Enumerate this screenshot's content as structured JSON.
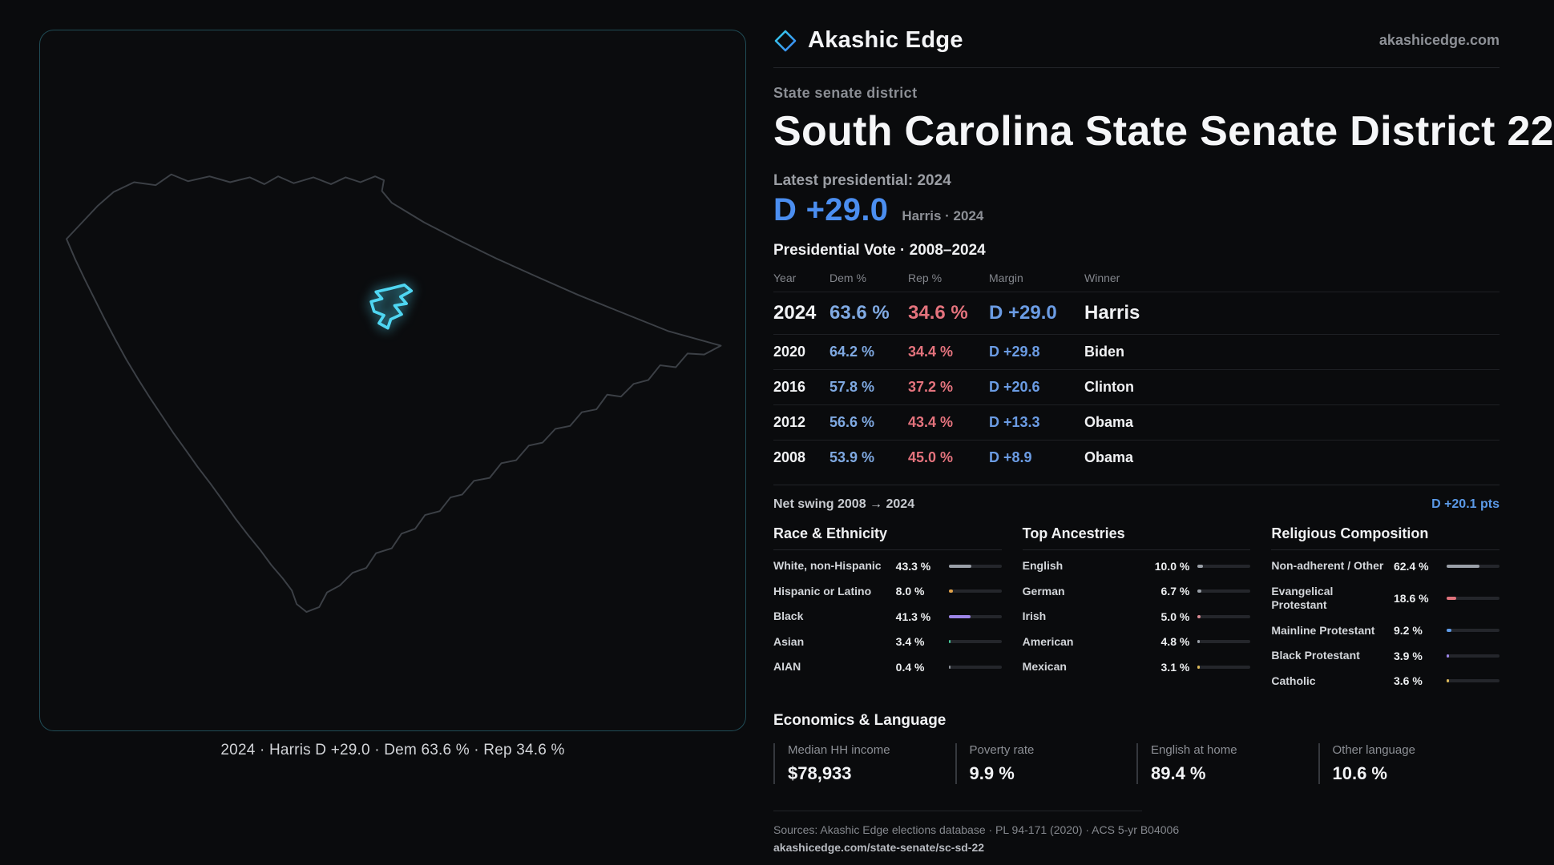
{
  "header": {
    "brand": "Akashic Edge",
    "domain": "akashicedge.com"
  },
  "district": {
    "kicker": "State senate district",
    "title": "South Carolina State Senate District 22",
    "latest_label": "Latest presidential: 2024",
    "margin_big": "D +29.0",
    "margin_context": "Harris · 2024"
  },
  "map": {
    "caption": "2024 · Harris D +29.0 · Dem 63.6 % · Rep 34.6 %"
  },
  "vote_table": {
    "title": "Presidential Vote · 2008–2024",
    "columns": [
      "Year",
      "Dem %",
      "Rep %",
      "Margin",
      "Winner"
    ],
    "rows": [
      {
        "year": "2024",
        "dem": "63.6 %",
        "rep": "34.6 %",
        "margin": "D +29.0",
        "winner": "Harris",
        "emphasis": true
      },
      {
        "year": "2020",
        "dem": "64.2 %",
        "rep": "34.4 %",
        "margin": "D +29.8",
        "winner": "Biden"
      },
      {
        "year": "2016",
        "dem": "57.8 %",
        "rep": "37.2 %",
        "margin": "D +20.6",
        "winner": "Clinton"
      },
      {
        "year": "2012",
        "dem": "56.6 %",
        "rep": "43.4 %",
        "margin": "D +13.3",
        "winner": "Obama"
      },
      {
        "year": "2008",
        "dem": "53.9 %",
        "rep": "45.0 %",
        "margin": "D +8.9",
        "winner": "Obama"
      }
    ],
    "net_swing_label": "Net swing 2008 → 2024",
    "net_swing_value": "D +20.1 pts"
  },
  "race": {
    "title": "Race & Ethnicity",
    "rows": [
      {
        "label": "White, non-Hispanic",
        "value": "43.3 %",
        "pct": 43.3,
        "color": "#9aa0a8"
      },
      {
        "label": "Hispanic or Latino",
        "value": "8.0 %",
        "pct": 8.0,
        "color": "#e0a24a"
      },
      {
        "label": "Black",
        "value": "41.3 %",
        "pct": 41.3,
        "color": "#9d85e8"
      },
      {
        "label": "Asian",
        "value": "3.4 %",
        "pct": 3.4,
        "color": "#46c99a"
      },
      {
        "label": "AIAN",
        "value": "0.4 %",
        "pct": 0.4,
        "color": "#8f949b"
      }
    ]
  },
  "ancestries": {
    "title": "Top Ancestries",
    "rows": [
      {
        "label": "English",
        "value": "10.0 %",
        "pct": 10.0,
        "color": "#9aa0a8"
      },
      {
        "label": "German",
        "value": "6.7 %",
        "pct": 6.7,
        "color": "#9aa0a8"
      },
      {
        "label": "Irish",
        "value": "5.0 %",
        "pct": 5.0,
        "color": "#d98a93"
      },
      {
        "label": "American",
        "value": "4.8 %",
        "pct": 4.8,
        "color": "#9aa0a8"
      },
      {
        "label": "Mexican",
        "value": "3.1 %",
        "pct": 3.1,
        "color": "#ddba5a"
      }
    ]
  },
  "religion": {
    "title": "Religious Composition",
    "rows": [
      {
        "label": "Non-adherent / Other",
        "value": "62.4 %",
        "pct": 62.4,
        "color": "#9aa0a8"
      },
      {
        "label": "Evangelical Protestant",
        "value": "18.6 %",
        "pct": 18.6,
        "color": "#e0737c"
      },
      {
        "label": "Mainline Protestant",
        "value": "9.2 %",
        "pct": 9.2,
        "color": "#5f9be8"
      },
      {
        "label": "Black Protestant",
        "value": "3.9 %",
        "pct": 3.9,
        "color": "#9d85e8"
      },
      {
        "label": "Catholic",
        "value": "3.6 %",
        "pct": 3.6,
        "color": "#ddba5a"
      }
    ]
  },
  "economics": {
    "title": "Economics & Language",
    "stats": [
      {
        "label": "Median HH income",
        "value": "$78,933"
      },
      {
        "label": "Poverty rate",
        "value": "9.9 %"
      },
      {
        "label": "English at home",
        "value": "89.4 %"
      },
      {
        "label": "Other language",
        "value": "10.6 %"
      }
    ]
  },
  "footer": {
    "sources": "Sources: Akashic Edge elections database · PL 94-171 (2020) · ACS 5-yr B04006",
    "permalink": "akashicedge.com/state-senate/sc-sd-22"
  },
  "chart_data": [
    {
      "type": "table",
      "title": "Presidential Vote · 2008–2024",
      "columns": [
        "Year",
        "Dem %",
        "Rep %",
        "Margin",
        "Winner"
      ],
      "rows": [
        [
          "2024",
          "63.6 %",
          "34.6 %",
          "D +29.0",
          "Harris"
        ],
        [
          "2020",
          "64.2 %",
          "34.4 %",
          "D +29.8",
          "Biden"
        ],
        [
          "2016",
          "57.8 %",
          "37.2 %",
          "D +20.6",
          "Clinton"
        ],
        [
          "2012",
          "56.6 %",
          "43.4 %",
          "D +13.3",
          "Obama"
        ],
        [
          "2008",
          "53.9 %",
          "45.0 %",
          "D +8.9",
          "Obama"
        ]
      ]
    },
    {
      "type": "bar",
      "title": "Race & Ethnicity",
      "categories": [
        "White, non-Hispanic",
        "Hispanic or Latino",
        "Black",
        "Asian",
        "AIAN"
      ],
      "values": [
        43.3,
        8.0,
        41.3,
        3.4,
        0.4
      ],
      "unit": "%",
      "xlim": [
        0,
        100
      ]
    },
    {
      "type": "bar",
      "title": "Top Ancestries",
      "categories": [
        "English",
        "German",
        "Irish",
        "American",
        "Mexican"
      ],
      "values": [
        10.0,
        6.7,
        5.0,
        4.8,
        3.1
      ],
      "unit": "%",
      "xlim": [
        0,
        100
      ]
    },
    {
      "type": "bar",
      "title": "Religious Composition",
      "categories": [
        "Non-adherent / Other",
        "Evangelical Protestant",
        "Mainline Protestant",
        "Black Protestant",
        "Catholic"
      ],
      "values": [
        62.4,
        18.6,
        9.2,
        3.9,
        3.6
      ],
      "unit": "%",
      "xlim": [
        0,
        100
      ]
    }
  ]
}
